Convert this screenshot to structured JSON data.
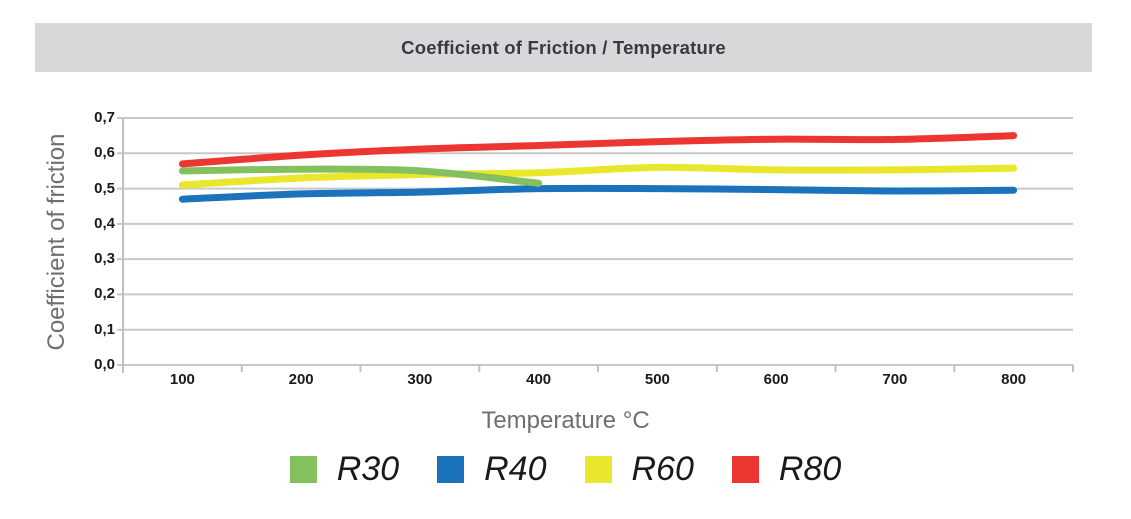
{
  "title_bar": {
    "title": "Coefficient of Friction / Temperature"
  },
  "colors": {
    "title_bar_bg": "#D8D8DA",
    "title_text": "#3A3A3E",
    "grid": "#C8C8C8",
    "axis": "#C0C0C0",
    "tick_text": "#1A1A1A",
    "axis_title_text": "#6F6F6F",
    "legend_text": "#1A1A1A"
  },
  "chart_data": {
    "type": "line",
    "title": "Coefficient of Friction / Temperature",
    "xlabel": "Temperature °C",
    "ylabel": "Coefficient of friction",
    "categories": [
      100,
      200,
      300,
      400,
      500,
      600,
      700,
      800
    ],
    "x_tick_labels": [
      "100",
      "200",
      "300",
      "400",
      "500",
      "600",
      "700",
      "800"
    ],
    "y_tick_labels": [
      "0,0",
      "0,1",
      "0,2",
      "0,3",
      "0,4",
      "0,5",
      "0,6",
      "0,7"
    ],
    "ylim": [
      0.0,
      0.7
    ],
    "y_tick_step": 0.1,
    "decimal_separator": ",",
    "grid": true,
    "legend_position": "bottom",
    "draw_order": [
      1,
      2,
      0,
      3
    ],
    "series": [
      {
        "name": "R30",
        "color": "#84C05E",
        "values": [
          0.55,
          0.555,
          0.55,
          0.515,
          null,
          null,
          null,
          null
        ]
      },
      {
        "name": "R40",
        "color": "#1B74BB",
        "values": [
          0.47,
          0.485,
          0.49,
          0.5,
          0.5,
          0.497,
          0.493,
          0.495
        ]
      },
      {
        "name": "R60",
        "color": "#E9E62B",
        "values": [
          0.51,
          0.53,
          0.54,
          0.545,
          0.56,
          0.553,
          0.553,
          0.558
        ]
      },
      {
        "name": "R80",
        "color": "#EC3632",
        "values": [
          0.57,
          0.595,
          0.612,
          0.622,
          0.633,
          0.64,
          0.639,
          0.65
        ]
      }
    ]
  }
}
